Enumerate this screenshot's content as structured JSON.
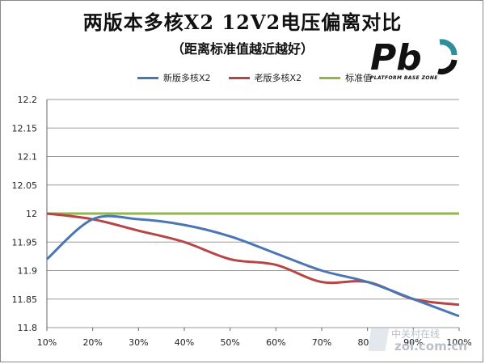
{
  "title": "两版本多核X2 12V2电压偏离对比",
  "subtitle": "（距离标准值越近越好）",
  "logo": {
    "text": "PLATFORM BASE ZONE",
    "icon": "pb-logo"
  },
  "watermark": {
    "line1": "中关村在线",
    "line2": "zol.com.cn"
  },
  "colors": {
    "new": "#4a76b4",
    "old": "#b84545",
    "std": "#93b64a",
    "grid": "#9a9a9a"
  },
  "chart_data": {
    "type": "line",
    "title": "两版本多核X2 12V2电压偏离对比",
    "subtitle": "（距离标准值越近越好）",
    "xlabel": "",
    "ylabel": "",
    "categories": [
      "10%",
      "20%",
      "30%",
      "40%",
      "50%",
      "60%",
      "70%",
      "80%",
      "90%",
      "100%"
    ],
    "ylim": [
      11.8,
      12.2
    ],
    "yticks": [
      "12.2",
      "12.15",
      "12.1",
      "12.05",
      "12",
      "11.95",
      "11.9",
      "11.85",
      "11.8"
    ],
    "legend_position": "top",
    "series": [
      {
        "name": "新版多核X2",
        "color": "#4a76b4",
        "values": [
          11.92,
          11.99,
          11.99,
          11.98,
          11.96,
          11.93,
          11.9,
          11.88,
          11.85,
          11.82
        ]
      },
      {
        "name": "老版多核X2",
        "color": "#b84545",
        "values": [
          12.0,
          11.99,
          11.97,
          11.95,
          11.92,
          11.91,
          11.88,
          11.88,
          11.85,
          11.84
        ]
      },
      {
        "name": "标准值",
        "color": "#93b64a",
        "values": [
          12.0,
          12.0,
          12.0,
          12.0,
          12.0,
          12.0,
          12.0,
          12.0,
          12.0,
          12.0
        ]
      }
    ]
  }
}
